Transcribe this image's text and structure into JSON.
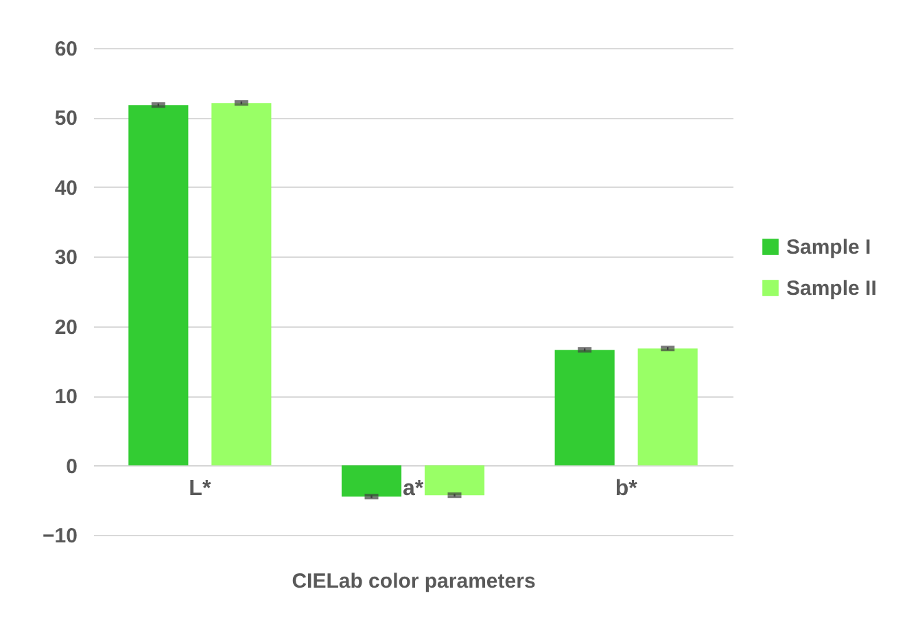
{
  "chart_data": {
    "type": "bar",
    "xlabel": "CIELab color parameters",
    "categories": [
      "L*",
      "a*",
      "b*"
    ],
    "series": [
      {
        "name": "Sample I",
        "color": "#33cc33",
        "values": [
          51.8,
          -4.5,
          16.6
        ],
        "errors": [
          0.2,
          0.2,
          0.2
        ]
      },
      {
        "name": "Sample II",
        "color": "#99ff66",
        "values": [
          52.1,
          -4.3,
          16.8
        ],
        "errors": [
          0.2,
          0.2,
          0.2
        ]
      }
    ],
    "ylim": [
      -10,
      60
    ],
    "yticks": [
      -10,
      0,
      10,
      20,
      30,
      40,
      50,
      60
    ],
    "grid": "y",
    "legend": "right"
  }
}
